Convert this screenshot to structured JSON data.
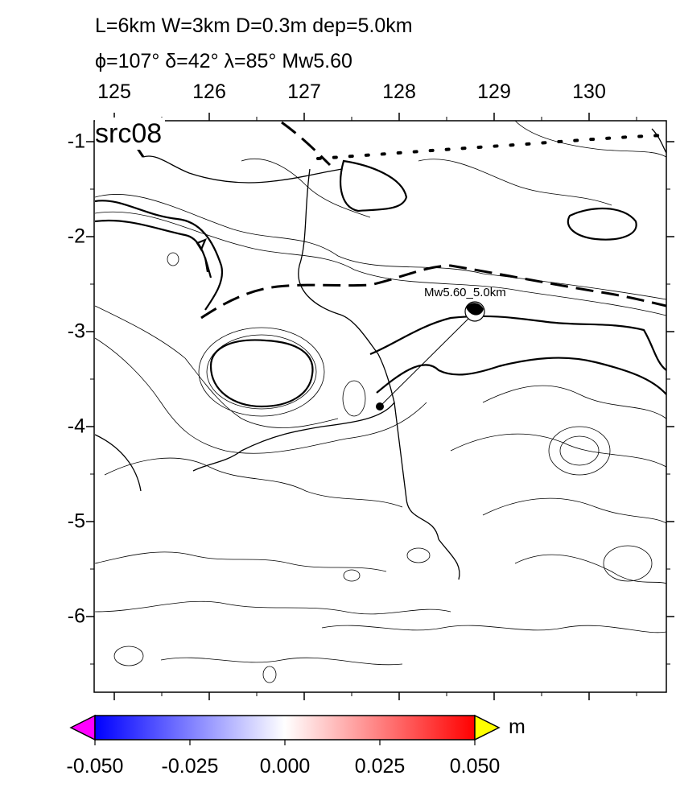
{
  "title": {
    "line1": "L=6km W=3km D=0.3m dep=5.0km",
    "line2": "ϕ=107° δ=42° λ=85° Mw5.60"
  },
  "panel_label": "src08",
  "x_axis": {
    "range": [
      124.8,
      130.8
    ],
    "tick_labels": [
      "125",
      "126",
      "127",
      "128",
      "129",
      "130"
    ]
  },
  "y_axis": {
    "range": [
      -6.8,
      -0.8
    ],
    "tick_labels": [
      "-1",
      "-2",
      "-3",
      "-4",
      "-5",
      "-6"
    ]
  },
  "source": {
    "label": "Mw5.60_5.0km",
    "epicenter": [
      127.8,
      -3.8
    ],
    "beachball": [
      128.75,
      -2.8
    ]
  },
  "colorbar": {
    "unit": "m",
    "range": [
      -0.05,
      0.05
    ],
    "colors": [
      "#0000ff",
      "#ffffff",
      "#ff0000"
    ],
    "under_color": "#ff00ff",
    "over_color": "#ffff00",
    "tick_labels": [
      "-0.050",
      "-0.025",
      "0.000",
      "0.025",
      "0.050"
    ]
  }
}
